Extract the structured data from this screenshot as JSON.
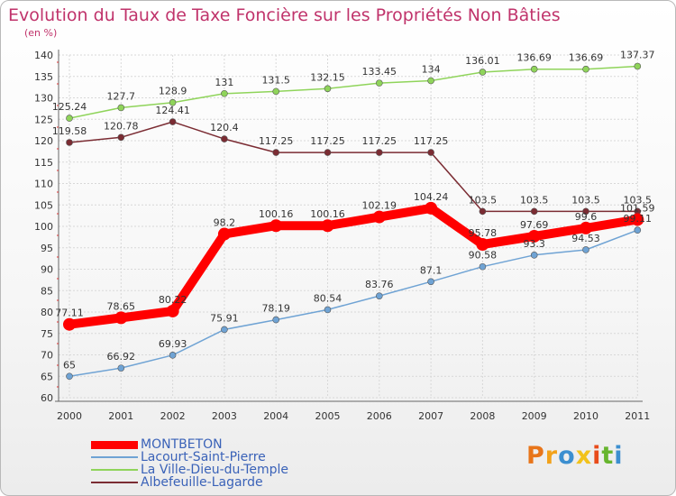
{
  "chart_data": {
    "type": "line",
    "title": "Evolution du Taux de Taxe Foncière sur les Propriétés Non Bâties",
    "subtitle": "(en %)",
    "x": [
      "2000",
      "2001",
      "2002",
      "2003",
      "2004",
      "2005",
      "2006",
      "2007",
      "2008",
      "2009",
      "2010",
      "2011"
    ],
    "ylim": [
      60,
      140
    ],
    "yticks": [
      60,
      65,
      70,
      75,
      80,
      85,
      90,
      95,
      100,
      105,
      110,
      115,
      120,
      125,
      130,
      135,
      140
    ],
    "grid": true,
    "legend_position": "bottom-left",
    "series": [
      {
        "name": "MONTBETON",
        "color": "#ff0000",
        "values": [
          77.11,
          78.65,
          80.22,
          98.2,
          100.16,
          100.16,
          102.19,
          104.24,
          95.78,
          97.69,
          99.6,
          101.59
        ],
        "labels": [
          "77.11",
          "78.65",
          "80.22",
          "98.2",
          "100.16",
          "100.16",
          "102.19",
          "104.24",
          "95.78",
          "97.69",
          "99.6",
          "101.59"
        ]
      },
      {
        "name": "Lacourt-Saint-Pierre",
        "color": "#6fa3d4",
        "values": [
          65,
          66.92,
          69.93,
          75.91,
          78.19,
          80.54,
          83.76,
          87.1,
          90.58,
          93.3,
          94.53,
          99.11
        ],
        "labels": [
          "65",
          "66.92",
          "69.93",
          "75.91",
          "78.19",
          "80.54",
          "83.76",
          "87.1",
          "90.58",
          "93.3",
          "94.53",
          "99.11"
        ]
      },
      {
        "name": "La Ville-Dieu-du-Temple",
        "color": "#8fd45a",
        "values": [
          125.24,
          127.7,
          128.9,
          131,
          131.5,
          132.15,
          133.45,
          134,
          136.01,
          136.69,
          136.69,
          137.37
        ],
        "labels": [
          "125.24",
          "127.7",
          "128.9",
          "131",
          "131.5",
          "132.15",
          "133.45",
          "134",
          "136.01",
          "136.69",
          "136.69",
          "137.37"
        ]
      },
      {
        "name": "Albefeuille-Lagarde",
        "color": "#7b2c33",
        "values": [
          119.58,
          120.78,
          124.41,
          120.4,
          117.25,
          117.25,
          117.25,
          117.25,
          103.5,
          103.5,
          103.5,
          103.5
        ],
        "labels": [
          "119.58",
          "120.78",
          "124.41",
          "120.4",
          "117.25",
          "117.25",
          "117.25",
          "117.25",
          "103.5",
          "103.5",
          "103.5",
          "103.5"
        ]
      }
    ]
  },
  "logo": {
    "text": "Proxiti",
    "colors": [
      "#e8751a",
      "#f2a21b",
      "#3c8fd0",
      "#f2c21b",
      "#e84b1a",
      "#67b52e",
      "#3c8fd0"
    ]
  }
}
